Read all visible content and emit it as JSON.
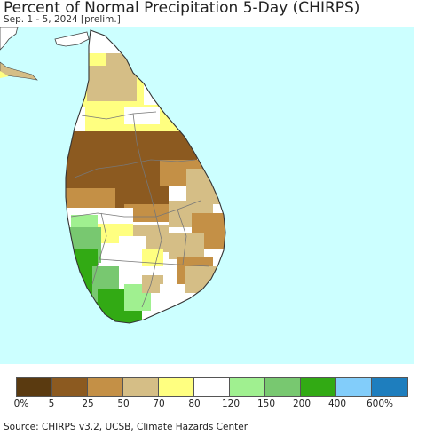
{
  "title": "Percent of Normal Precipitation 5-Day (CHIRPS)",
  "subtitle": "Sep. 1 - 5, 2024 [prelim.]",
  "source": "Source: CHIRPS v3.2, UCSB, Climate Hazards Center",
  "legend": {
    "colors": [
      "#5a3a10",
      "#8c5a20",
      "#c49046",
      "#d5be86",
      "#ffff80",
      "#ffffff",
      "#a0f090",
      "#78c870",
      "#32aa14",
      "#82cdfa",
      "#1e7ebe"
    ],
    "labels": [
      "0%",
      "5",
      "25",
      "50",
      "70",
      "80",
      "120",
      "150",
      "200",
      "400",
      "600%"
    ]
  },
  "map": {
    "ocean_color": "#ccffff",
    "land_color": "#ffffff",
    "boundary_color": "#777777",
    "regions": [
      {
        "name": "jaffna-peninsula",
        "category": "50",
        "color": "#d5be86"
      },
      {
        "name": "northern-province",
        "category": "70",
        "color": "#ffff80"
      },
      {
        "name": "north-central-dry-zone",
        "category": "5",
        "color": "#8c5a20"
      },
      {
        "name": "eastern-coast",
        "category": "25",
        "color": "#c49046"
      },
      {
        "name": "central-highlands",
        "category": "50",
        "color": "#d5be86"
      },
      {
        "name": "southwestern-wet-zone",
        "category": "200",
        "color": "#32aa14"
      },
      {
        "name": "southern-coast",
        "category": "80",
        "color": "#ffffff"
      }
    ]
  }
}
